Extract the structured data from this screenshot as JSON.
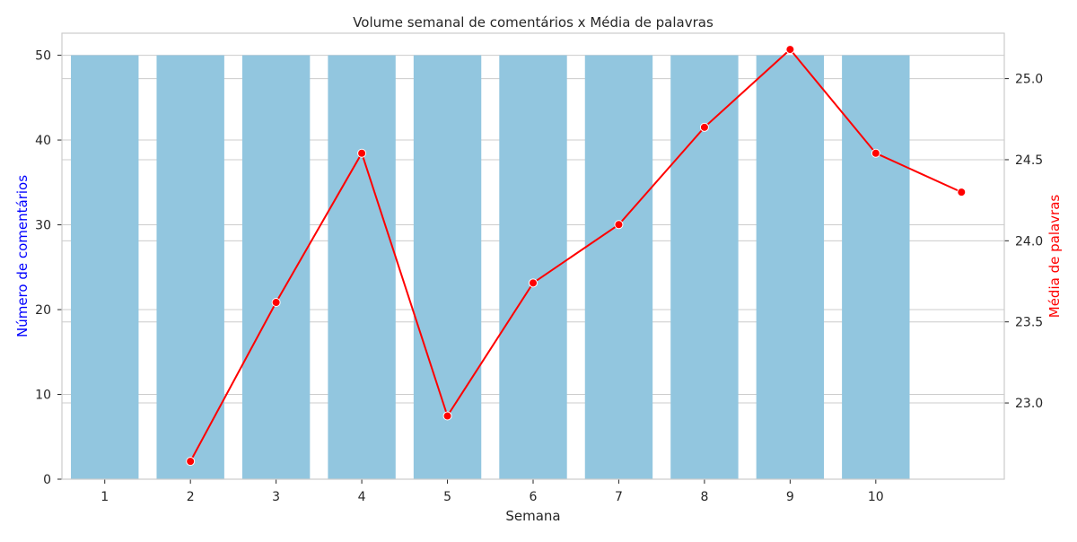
{
  "chart_data": {
    "type": "bar",
    "title": "Volume semanal de comentários x Média de palavras",
    "xlabel": "Semana",
    "ylabel_left": "Número de comentários",
    "ylabel_right": "Média de palavras",
    "categories": [
      "1",
      "2",
      "3",
      "4",
      "5",
      "6",
      "7",
      "8",
      "9",
      "10"
    ],
    "ylim_left": [
      0,
      52.6
    ],
    "ylim_right": [
      22.53,
      25.28
    ],
    "yticks_left": [
      0,
      10,
      20,
      30,
      40,
      50
    ],
    "yticks_right": [
      23.0,
      23.5,
      24.0,
      24.5,
      25.0
    ],
    "ytick_labels_left": [
      "0",
      "10",
      "20",
      "30",
      "40",
      "50"
    ],
    "ytick_labels_right": [
      "23.0",
      "23.5",
      "24.0",
      "24.5",
      "25.0"
    ],
    "grid": true,
    "series": [
      {
        "type": "bar",
        "axis": "left",
        "color": "#92c6df",
        "values": [
          50,
          50,
          50,
          50,
          50,
          50,
          50,
          50,
          50,
          50
        ]
      },
      {
        "type": "line",
        "axis": "right",
        "color": "#ff0000",
        "marker": "circle",
        "x_index": [
          1,
          2,
          3,
          4,
          5,
          6,
          7,
          8,
          9,
          10
        ],
        "values": [
          22.64,
          23.62,
          24.54,
          22.92,
          23.74,
          24.1,
          24.7,
          25.18,
          24.54,
          24.3
        ]
      }
    ],
    "colors": {
      "left_axis_label": "#0000ff",
      "right_axis_label": "#ff0000",
      "text": "#262626",
      "grid": "#cccccc",
      "frame": "#cccccc"
    }
  }
}
